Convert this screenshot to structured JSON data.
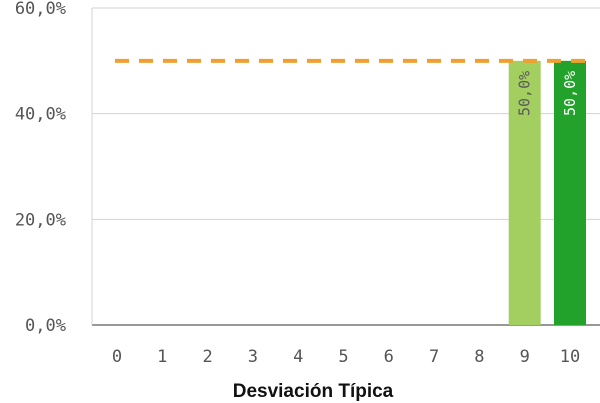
{
  "chart_data": {
    "type": "bar",
    "xlabel": "Desviación Típica",
    "ylabel": "",
    "ylim": [
      0,
      60
    ],
    "y_ticks": [
      "0,0%",
      "20,0%",
      "40,0%",
      "60,0%"
    ],
    "y_tick_values": [
      0,
      20,
      40,
      60
    ],
    "categories": [
      "0",
      "1",
      "2",
      "3",
      "4",
      "5",
      "6",
      "7",
      "8",
      "9",
      "10"
    ],
    "values": [
      0,
      0,
      0,
      0,
      0,
      0,
      0,
      0,
      0,
      50,
      50
    ],
    "data_labels": [
      "",
      "",
      "",
      "",
      "",
      "",
      "",
      "",
      "",
      "50,0%",
      "50,0%"
    ],
    "bar_colors": {
      "9": "#a2cf5f",
      "10": "#22a22a"
    },
    "bar_label_colors": {
      "9": "#5a5a5a",
      "10": "#ffffff"
    },
    "reference_line": {
      "value": 50,
      "style": "dashed",
      "color": "#f0a030"
    },
    "grid": true,
    "gridline_color": "#d3d3d3"
  }
}
